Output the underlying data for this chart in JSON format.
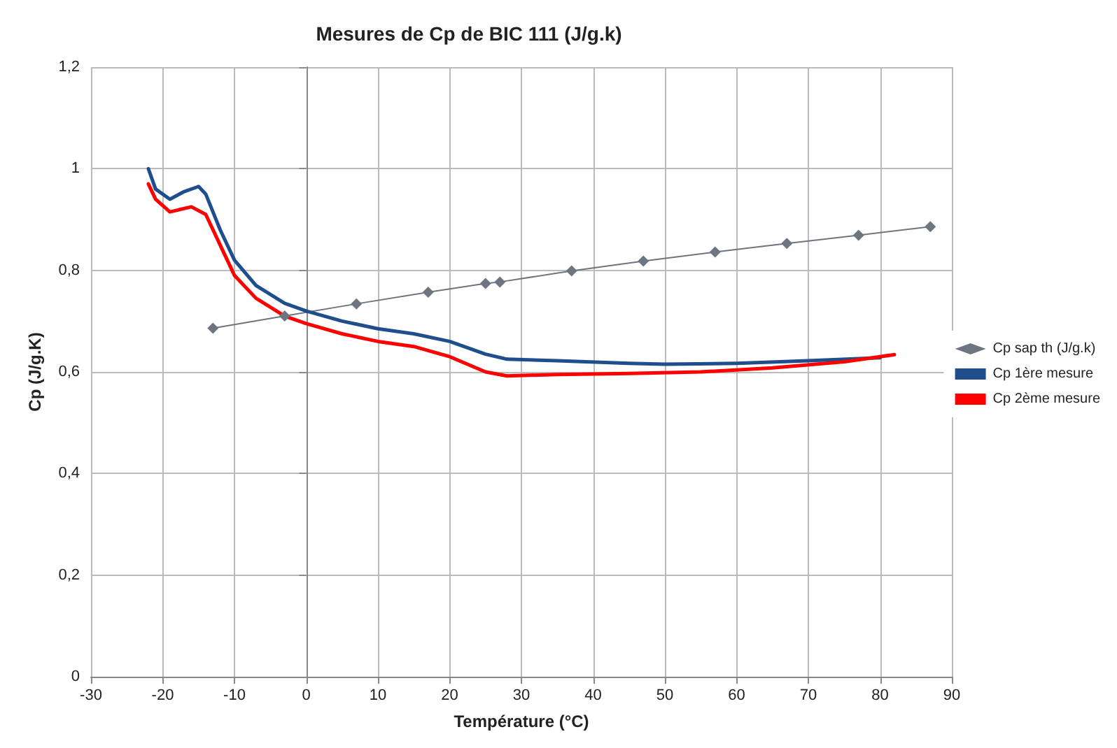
{
  "chart_data": {
    "type": "line",
    "title": "Mesures de Cp de BIC 111 (J/g.k)",
    "xlabel": "Température (°C)",
    "ylabel": "Cp (J/g.K)",
    "xlim": [
      -30,
      90
    ],
    "xticks": [
      -30,
      -20,
      -10,
      0,
      10,
      20,
      30,
      40,
      50,
      60,
      70,
      80,
      90
    ],
    "ylim": [
      0,
      1.2
    ],
    "yticks": [
      0,
      {
        "value": 0.2,
        "label": "0,2"
      },
      {
        "value": 0.4,
        "label": "0,4"
      },
      {
        "value": 0.6,
        "label": "0,6"
      },
      {
        "value": 0.8,
        "label": "0,8"
      },
      1,
      {
        "value": 1.2,
        "label": "1,2"
      }
    ],
    "grid": true,
    "legend": "right",
    "series": [
      {
        "name": "Cp sap th (J/g.k)",
        "color": "#6d7580",
        "marker": "diamond",
        "x": [
          -13,
          -3,
          7,
          17,
          25,
          27,
          37,
          47,
          57,
          67,
          77,
          87
        ],
        "values": [
          0.686,
          0.71,
          0.734,
          0.757,
          0.774,
          0.777,
          0.799,
          0.818,
          0.836,
          0.853,
          0.869,
          0.886
        ]
      },
      {
        "name": "Cp 1ère mesure",
        "color": "#1f4e8c",
        "marker": "none",
        "x": [
          -22,
          -21,
          -19,
          -17,
          -15,
          -14,
          -12,
          -10,
          -7,
          -3,
          0,
          5,
          10,
          15,
          20,
          25,
          28,
          35,
          45,
          50,
          60,
          70,
          80
        ],
        "values": [
          1.0,
          0.96,
          0.94,
          0.955,
          0.965,
          0.95,
          0.88,
          0.82,
          0.77,
          0.735,
          0.72,
          0.7,
          0.685,
          0.675,
          0.66,
          0.635,
          0.625,
          0.622,
          0.617,
          0.615,
          0.617,
          0.622,
          0.628
        ]
      },
      {
        "name": "Cp 2ème mesure",
        "color": "#ff0000",
        "marker": "none",
        "x": [
          -22,
          -21,
          -19,
          -16,
          -14,
          -12,
          -10,
          -7,
          -3,
          0,
          5,
          10,
          15,
          20,
          25,
          28,
          35,
          45,
          55,
          65,
          75,
          82
        ],
        "values": [
          0.97,
          0.94,
          0.915,
          0.925,
          0.91,
          0.85,
          0.79,
          0.745,
          0.71,
          0.695,
          0.675,
          0.66,
          0.65,
          0.63,
          0.6,
          0.592,
          0.595,
          0.597,
          0.6,
          0.608,
          0.62,
          0.634
        ]
      }
    ]
  }
}
